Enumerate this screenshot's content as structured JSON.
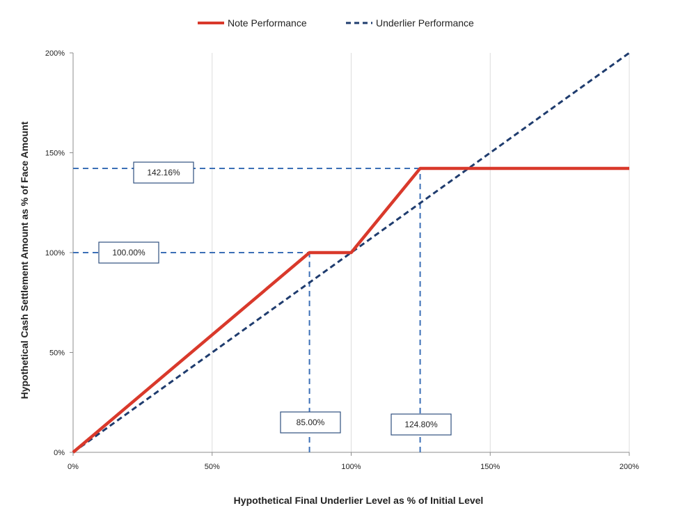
{
  "chart_data": {
    "type": "line",
    "xlabel": "Hypothetical Final Underlier Level as % of Initial  Level",
    "ylabel": "Hypothetical Cash Settlement Amount as % of Face Amount",
    "xlim": [
      0,
      200
    ],
    "ylim": [
      0,
      200
    ],
    "x_ticks": [
      0,
      50,
      100,
      150,
      200
    ],
    "x_tick_labels": [
      "0%",
      "50%",
      "100%",
      "150%",
      "200%"
    ],
    "y_ticks": [
      0,
      50,
      100,
      150,
      200
    ],
    "y_tick_labels": [
      "0%",
      "50%",
      "100%",
      "150%",
      "200%"
    ],
    "grid": "vertical",
    "legend_position": "top",
    "series": [
      {
        "name": "Note Performance",
        "style": "solid",
        "color": "#d9392b",
        "x": [
          0,
          85,
          100,
          124.8,
          200
        ],
        "y": [
          0,
          100,
          100,
          142.16,
          142.16
        ]
      },
      {
        "name": "Underlier Performance",
        "style": "dashed",
        "color": "#1f3c6e",
        "x": [
          0,
          200
        ],
        "y": [
          0,
          200
        ]
      }
    ],
    "reference_lines": [
      {
        "orientation": "horizontal",
        "value": 142.16,
        "from": 0,
        "to": 124.8,
        "label": "142.16%"
      },
      {
        "orientation": "horizontal",
        "value": 100,
        "from": 0,
        "to": 85,
        "label": "100.00%"
      },
      {
        "orientation": "vertical",
        "value": 85,
        "from": 0,
        "to": 100,
        "label": "85.00%"
      },
      {
        "orientation": "vertical",
        "value": 124.8,
        "from": 0,
        "to": 142.16,
        "label": "124.80%"
      }
    ],
    "reference_line_color": "#3b6fb6"
  }
}
